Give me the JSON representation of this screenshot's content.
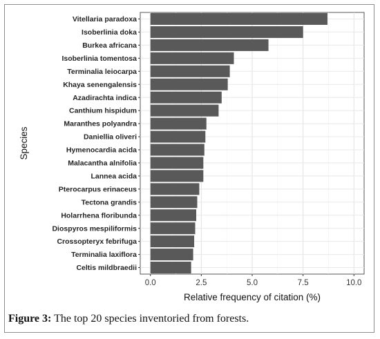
{
  "chart_data": {
    "type": "bar",
    "orientation": "horizontal",
    "categories": [
      "Vitellaria paradoxa",
      "Isoberlinia doka",
      "Burkea africana",
      "Isoberlinia tomentosa",
      "Terminalia leiocarpa",
      "Khaya senengalensis",
      "Azadirachta indica",
      "Canthium hispidum",
      "Maranthes polyandra",
      "Daniellia oliveri",
      "Hymenocardia acida",
      "Malacantha alnifolia",
      "Lannea acida",
      "Pterocarpus erinaceus",
      "Tectona grandis",
      "Holarrhena floribunda",
      "Diospyros mespiliformis",
      "Crossopteryx febrifuga",
      "Terminalia laxiflora",
      "Celtis mildbraedii"
    ],
    "values": [
      8.7,
      7.5,
      5.8,
      4.1,
      3.9,
      3.8,
      3.5,
      3.35,
      2.75,
      2.7,
      2.65,
      2.6,
      2.6,
      2.4,
      2.3,
      2.25,
      2.2,
      2.15,
      2.1,
      2.0
    ],
    "xlabel": "Relative frequency of citation (%)",
    "ylabel": "Species",
    "xlim": [
      -0.5,
      10.5
    ],
    "xticks": [
      "0.0",
      "2.5",
      "5.0",
      "7.5",
      "10.0"
    ],
    "grid": true,
    "bar_color": "#595959"
  },
  "caption": {
    "label": "Figure 3:",
    "text": " The top 20 species inventoried from forests."
  }
}
